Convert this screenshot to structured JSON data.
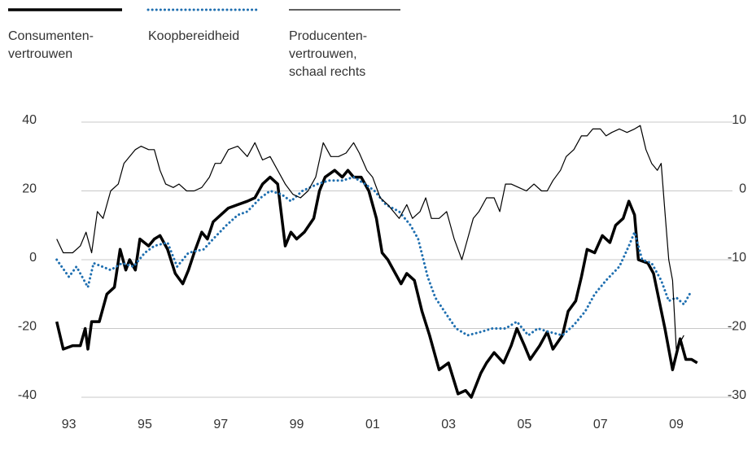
{
  "chart_data": {
    "type": "line",
    "xlim": [
      1992.6,
      2009.9
    ],
    "xticks": [
      {
        "value": 1993,
        "label": "93"
      },
      {
        "value": 1995,
        "label": "95"
      },
      {
        "value": 1997,
        "label": "97"
      },
      {
        "value": 1999,
        "label": "99"
      },
      {
        "value": 2001,
        "label": "01"
      },
      {
        "value": 2003,
        "label": "03"
      },
      {
        "value": 2005,
        "label": "05"
      },
      {
        "value": 2007,
        "label": "07"
      },
      {
        "value": 2009,
        "label": "09"
      }
    ],
    "ylim": [
      -40,
      40
    ],
    "yticks": [
      40,
      20,
      0,
      -20,
      -40
    ],
    "y2lim": [
      -30,
      10
    ],
    "y2ticks": [
      10,
      0,
      -10,
      -20,
      -30
    ],
    "grid": true,
    "series": [
      {
        "name": "Consumenten-\nvertrouwen",
        "color": "#000000",
        "style": "thick",
        "x": [
          1992.68,
          1992.85,
          1993.1,
          1993.3,
          1993.43,
          1993.5,
          1993.6,
          1993.8,
          1994.0,
          1994.2,
          1994.35,
          1994.5,
          1994.6,
          1994.75,
          1994.87,
          1995.1,
          1995.25,
          1995.4,
          1995.6,
          1995.8,
          1996.0,
          1996.15,
          1996.3,
          1996.5,
          1996.65,
          1996.8,
          1997.0,
          1997.2,
          1997.45,
          1997.7,
          1997.9,
          1998.1,
          1998.3,
          1998.5,
          1998.7,
          1998.85,
          1999.0,
          1999.2,
          1999.45,
          1999.6,
          1999.75,
          2000.0,
          2000.2,
          2000.35,
          2000.5,
          2000.7,
          2000.9,
          2001.1,
          2001.25,
          2001.4,
          2001.6,
          2001.75,
          2001.9,
          2002.1,
          2002.3,
          2002.5,
          2002.75,
          2003.0,
          2003.25,
          2003.45,
          2003.6,
          2003.85,
          2004.0,
          2004.2,
          2004.45,
          2004.65,
          2004.8,
          2005.0,
          2005.15,
          2005.4,
          2005.6,
          2005.75,
          2006.0,
          2006.15,
          2006.35,
          2006.5,
          2006.65,
          2006.85,
          2007.05,
          2007.25,
          2007.4,
          2007.6,
          2007.75,
          2007.9,
          2008.0,
          2008.25,
          2008.4,
          2008.55,
          2008.7,
          2008.9,
          2009.1,
          2009.25,
          2009.4,
          2009.55
        ],
        "values": [
          -18,
          -26,
          -25,
          -25,
          -20,
          -26,
          -18,
          -18,
          -10,
          -8,
          3,
          -3,
          0,
          -3,
          6,
          4,
          6,
          7,
          3,
          -4,
          -7,
          -3,
          2,
          8,
          6,
          11,
          13,
          15,
          16,
          17,
          18,
          22,
          24,
          22,
          4,
          8,
          6,
          8,
          12,
          20,
          24,
          26,
          24,
          26,
          24,
          24,
          20,
          12,
          2,
          0,
          -4,
          -7,
          -4,
          -6,
          -15,
          -22,
          -32,
          -30,
          -39,
          -38,
          -40,
          -33,
          -30,
          -27,
          -30,
          -25,
          -20,
          -25,
          -29,
          -25,
          -21,
          -26,
          -22,
          -15,
          -12,
          -5,
          3,
          2,
          7,
          5,
          10,
          12,
          17,
          13,
          0,
          -1,
          -4,
          -12,
          -20,
          -32,
          -23,
          -29,
          -29,
          -30
        ]
      },
      {
        "name": "Koopbereidheid",
        "color": "#1f6fb0",
        "style": "dotted",
        "x": [
          1992.68,
          1993.0,
          1993.2,
          1993.5,
          1993.65,
          1994.1,
          1994.4,
          1994.7,
          1995.0,
          1995.25,
          1995.6,
          1995.85,
          1996.15,
          1996.55,
          1996.8,
          1997.15,
          1997.45,
          1997.7,
          1998.05,
          1998.3,
          1998.6,
          1998.85,
          1999.15,
          1999.55,
          1999.85,
          2000.2,
          2000.5,
          2000.8,
          2001.05,
          2001.35,
          2001.7,
          2002.0,
          2002.2,
          2002.45,
          2002.65,
          2002.95,
          2003.2,
          2003.5,
          2003.85,
          2004.15,
          2004.5,
          2004.8,
          2005.1,
          2005.35,
          2005.65,
          2006.0,
          2006.3,
          2006.6,
          2006.85,
          2007.15,
          2007.5,
          2007.75,
          2007.9,
          2008.1,
          2008.35,
          2008.6,
          2008.8,
          2009.0,
          2009.2,
          2009.4
        ],
        "values": [
          0,
          -5,
          -2,
          -8,
          -1,
          -3,
          -1,
          -2,
          2,
          4,
          5,
          -2,
          2,
          3,
          6,
          10,
          13,
          14,
          18,
          20,
          19,
          17,
          20,
          22,
          23,
          23,
          24,
          22,
          20,
          16,
          14,
          10,
          6,
          -5,
          -11,
          -16,
          -20,
          -22,
          -21,
          -20,
          -20,
          -18,
          -22,
          -20,
          -21,
          -22,
          -19,
          -15,
          -10,
          -6,
          -2,
          4,
          8,
          0,
          -1,
          -6,
          -12,
          -11,
          -13,
          -9
        ]
      },
      {
        "name": "Producenten-\nvertrouwen,\nschaal rechts",
        "color": "#000000",
        "style": "thin",
        "axis": "y2",
        "x": [
          1992.68,
          1992.85,
          1993.1,
          1993.3,
          1993.45,
          1993.6,
          1993.75,
          1993.9,
          1994.1,
          1994.3,
          1994.45,
          1994.6,
          1994.75,
          1994.9,
          1995.1,
          1995.25,
          1995.4,
          1995.55,
          1995.75,
          1995.9,
          1996.1,
          1996.3,
          1996.5,
          1996.7,
          1996.85,
          1997.0,
          1997.2,
          1997.45,
          1997.7,
          1997.9,
          1998.1,
          1998.3,
          1998.5,
          1998.7,
          1998.9,
          1999.1,
          1999.3,
          1999.5,
          1999.7,
          1999.9,
          2000.1,
          2000.3,
          2000.5,
          2000.65,
          2000.85,
          2001.0,
          2001.2,
          2001.4,
          2001.55,
          2001.7,
          2001.9,
          2002.05,
          2002.25,
          2002.4,
          2002.55,
          2002.75,
          2002.95,
          2003.15,
          2003.35,
          2003.5,
          2003.65,
          2003.8,
          2004.0,
          2004.2,
          2004.35,
          2004.5,
          2004.65,
          2004.85,
          2005.05,
          2005.25,
          2005.45,
          2005.6,
          2005.75,
          2005.95,
          2006.1,
          2006.3,
          2006.5,
          2006.65,
          2006.8,
          2007.0,
          2007.15,
          2007.3,
          2007.5,
          2007.7,
          2007.9,
          2008.05,
          2008.2,
          2008.35,
          2008.5,
          2008.6,
          2008.7,
          2008.8,
          2008.9,
          2009.0,
          2009.1,
          2009.2
        ],
        "values": [
          -7,
          -9,
          -9,
          -8,
          -6,
          -9,
          -3,
          -4,
          0,
          1,
          4,
          5,
          6,
          6.5,
          6,
          6,
          3,
          1,
          0.5,
          1,
          0,
          0,
          0.5,
          2,
          4,
          4,
          6,
          6.5,
          5,
          7,
          4.5,
          5,
          3,
          1,
          -0.5,
          -1,
          0,
          2,
          7,
          5,
          5,
          5.5,
          7,
          5.5,
          3,
          2,
          -1,
          -2,
          -3,
          -4,
          -2,
          -4,
          -3,
          -1,
          -4,
          -4,
          -3,
          -7,
          -10,
          -7,
          -4,
          -3,
          -1,
          -1,
          -3,
          1,
          1,
          0.5,
          0,
          1,
          0,
          0,
          1.5,
          3,
          5,
          6,
          8,
          8,
          9,
          9,
          8,
          8.5,
          9,
          8.5,
          9,
          9.5,
          6,
          4,
          3,
          4,
          -3,
          -10,
          -13,
          -23,
          -22,
          -21
        ]
      }
    ]
  }
}
